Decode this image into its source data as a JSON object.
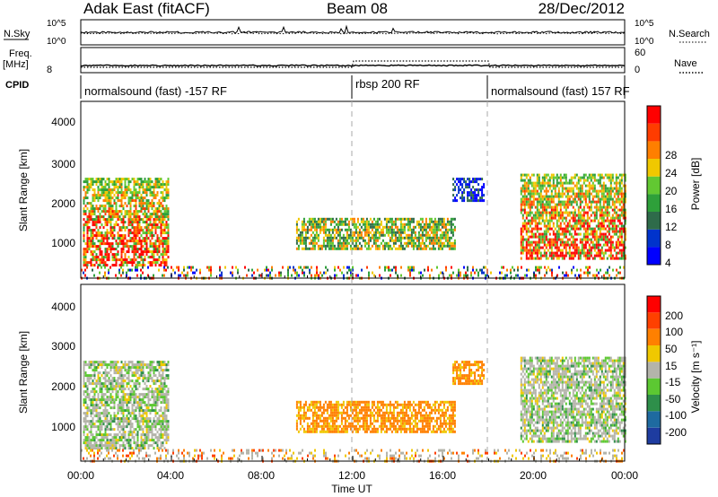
{
  "header": {
    "title": "Adak East (fitACF)",
    "beam": "Beam 08",
    "date": "28/Dec/2012"
  },
  "top_panels": {
    "nsky_label": "N.Sky",
    "nsky_ticks": [
      "10^5",
      "10^0"
    ],
    "nsearch_label": "N.Search",
    "nsearch_ticks": [
      "10^5",
      "10^0"
    ],
    "freq_label": "Freq.",
    "freq_unit": "[MHz]",
    "freq_ticks": [
      "8"
    ],
    "nave_label": "Nave",
    "nave_ticks": [
      "60",
      "0"
    ],
    "cpid_label": "CPID",
    "cpid_segments": [
      {
        "label": "normalsound (fast) -157 RF",
        "start_h": 0,
        "end_h": 12
      },
      {
        "label": "rbsp 200 RF",
        "start_h": 12,
        "end_h": 18
      },
      {
        "label": "normalsound (fast) 157 RF",
        "start_h": 18,
        "end_h": 24
      }
    ]
  },
  "x_axis": {
    "title": "Time UT",
    "ticks": [
      "00:00",
      "04:00",
      "08:00",
      "12:00",
      "16:00",
      "20:00",
      "00:00"
    ],
    "range_h": [
      0,
      24
    ]
  },
  "chart_data": [
    {
      "type": "heatmap",
      "name": "power",
      "ylabel": "Slant Range [km]",
      "yticks": [
        "4000",
        "3000",
        "2000",
        "1000"
      ],
      "ylim": [
        200,
        4600
      ],
      "colorbar": {
        "label": "Power [dB]",
        "ticks": [
          "28",
          "24",
          "20",
          "16",
          "12",
          "8",
          "4"
        ],
        "colors": [
          "#0000ff",
          "#0033cc",
          "#2e6b4a",
          "#2ea03a",
          "#62c832",
          "#f0c800",
          "#ff7f00",
          "#ff3c00",
          "#ff0000"
        ]
      },
      "regions": [
        {
          "t": [
            0.1,
            3.9
          ],
          "range": [
            500,
            2700
          ],
          "level": "high"
        },
        {
          "t": [
            9.5,
            16.5
          ],
          "range": [
            900,
            1700
          ],
          "level": "mid"
        },
        {
          "t": [
            16.4,
            17.8
          ],
          "range": [
            2100,
            2700
          ],
          "level": "low"
        },
        {
          "t": [
            19.4,
            24.0
          ],
          "range": [
            700,
            2800
          ],
          "level": "high"
        },
        {
          "t": [
            0.0,
            24.0
          ],
          "range": [
            200,
            500
          ],
          "level": "noise"
        }
      ]
    },
    {
      "type": "heatmap",
      "name": "velocity",
      "ylabel": "Slant Range [km]",
      "yticks": [
        "4000",
        "3000",
        "2000",
        "1000"
      ],
      "ylim": [
        200,
        4600
      ],
      "colorbar": {
        "label": "Velocity [m s⁻¹]",
        "ticks": [
          "200",
          "100",
          "50",
          "15",
          "-15",
          "-50",
          "-100",
          "-200"
        ],
        "colors": [
          "#1e3ca0",
          "#1e6aa0",
          "#2e8f4a",
          "#5cc832",
          "#b4b4aa",
          "#f0c800",
          "#ff8000",
          "#ff4000",
          "#ff0000"
        ]
      },
      "regions": [
        {
          "t": [
            0.1,
            3.9
          ],
          "range": [
            500,
            2700
          ],
          "level": "gray-green"
        },
        {
          "t": [
            9.5,
            16.5
          ],
          "range": [
            900,
            1700
          ],
          "level": "orange"
        },
        {
          "t": [
            16.4,
            17.8
          ],
          "range": [
            2100,
            2700
          ],
          "level": "orange"
        },
        {
          "t": [
            19.4,
            24.0
          ],
          "range": [
            700,
            2800
          ],
          "level": "gray-green"
        },
        {
          "t": [
            0.0,
            24.0
          ],
          "range": [
            200,
            500
          ],
          "level": "noise"
        }
      ]
    }
  ]
}
